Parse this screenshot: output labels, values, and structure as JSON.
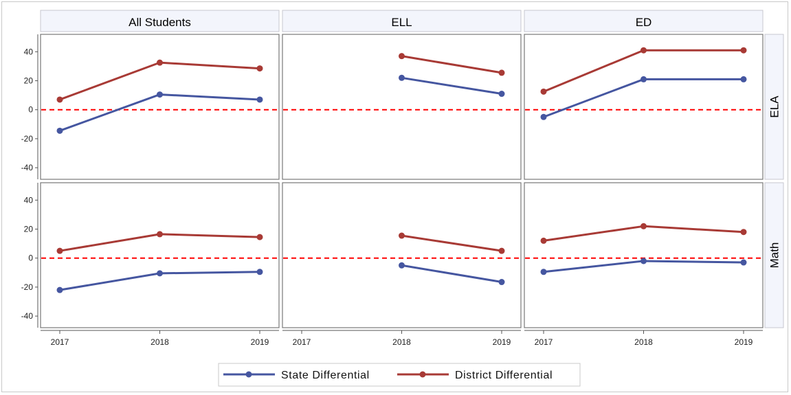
{
  "chart_data": {
    "type": "line",
    "columns": [
      "All Students",
      "ELL",
      "ED"
    ],
    "rows": [
      "ELA",
      "Math"
    ],
    "x": [
      "2017",
      "2018",
      "2019"
    ],
    "ylim": [
      -48,
      52
    ],
    "yticks": [
      -40,
      -20,
      0,
      20,
      40
    ],
    "reference_line": 0,
    "grid": false,
    "legend_position": "bottom",
    "series": [
      {
        "name": "State Differential",
        "color": "#4556a0"
      },
      {
        "name": "District Differential",
        "color": "#a83a35"
      }
    ],
    "panels": [
      {
        "row": "ELA",
        "column": "All Students",
        "values": {
          "State Differential": [
            -14.5,
            10.5,
            7
          ],
          "District Differential": [
            7,
            32.5,
            28.5
          ]
        }
      },
      {
        "row": "ELA",
        "column": "ELL",
        "values": {
          "State Differential": [
            null,
            22,
            11
          ],
          "District Differential": [
            null,
            37,
            25.5
          ]
        }
      },
      {
        "row": "ELA",
        "column": "ED",
        "values": {
          "State Differential": [
            -5,
            21,
            21
          ],
          "District Differential": [
            12.5,
            41,
            41
          ]
        }
      },
      {
        "row": "Math",
        "column": "All Students",
        "values": {
          "State Differential": [
            -22,
            -10.5,
            -9.5
          ],
          "District Differential": [
            5,
            16.5,
            14.5
          ]
        }
      },
      {
        "row": "Math",
        "column": "ELL",
        "values": {
          "State Differential": [
            null,
            -5,
            -16.5
          ],
          "District Differential": [
            null,
            15.5,
            5
          ]
        }
      },
      {
        "row": "Math",
        "column": "ED",
        "values": {
          "State Differential": [
            -9.5,
            -2,
            -3
          ],
          "District Differential": [
            12,
            22,
            18
          ]
        }
      }
    ]
  },
  "colors": {
    "reference_line": "#ff0000",
    "header_fill": "#f3f5fc",
    "panel_border": "#777777",
    "header_border": "#c7c7cf"
  }
}
